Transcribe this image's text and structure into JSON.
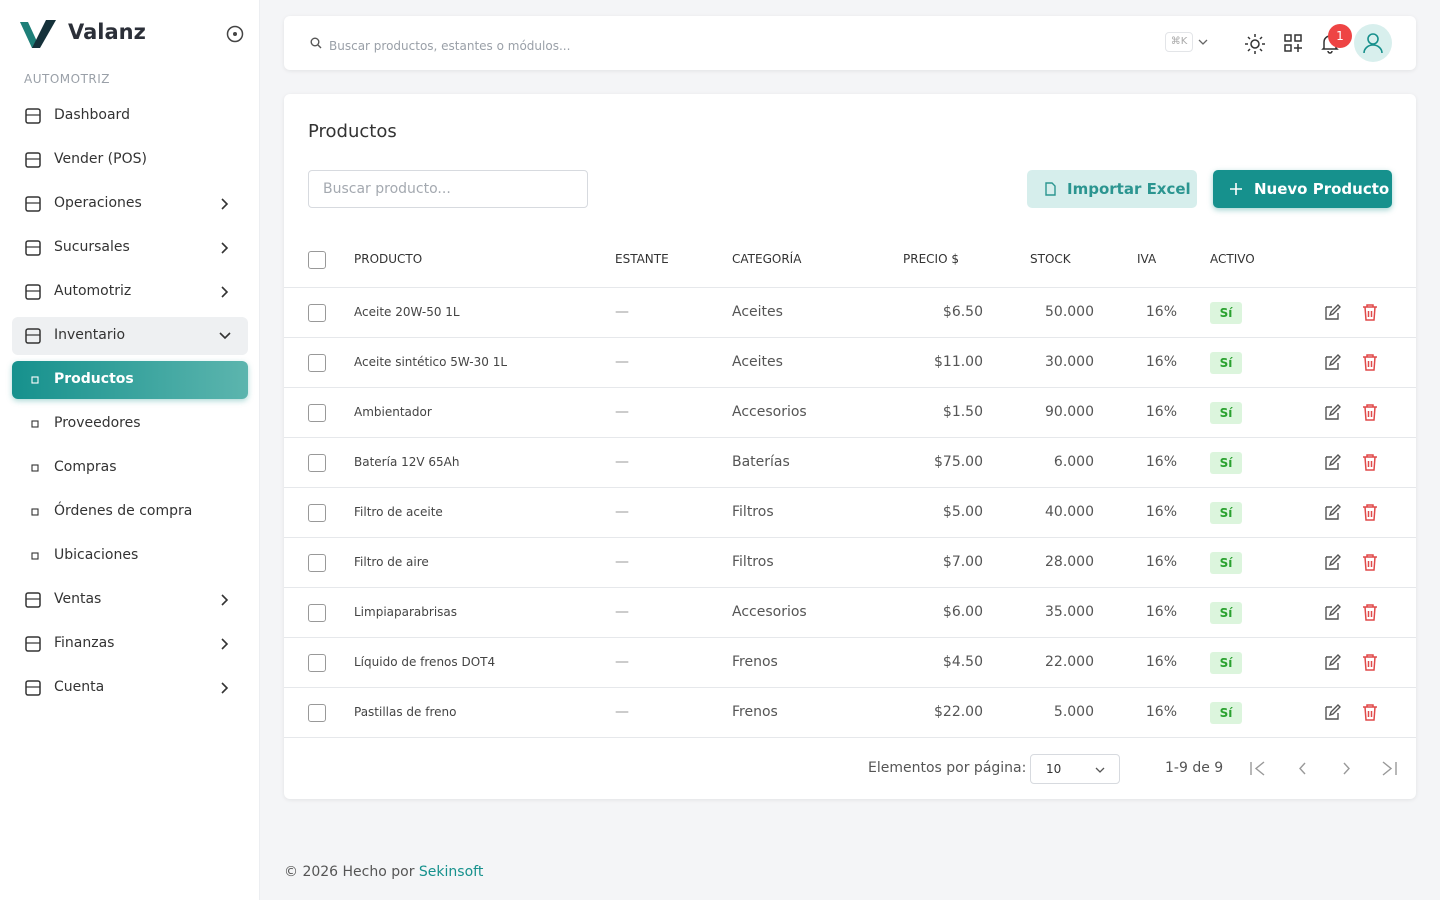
{
  "sidebar": {
    "brand": "Valanz",
    "section": "AUTOMOTRIZ",
    "items": [
      {
        "label": "Dashboard"
      },
      {
        "label": "Vender (POS)"
      },
      {
        "label": "Operaciones",
        "expandable": true
      },
      {
        "label": "Sucursales",
        "expandable": true
      },
      {
        "label": "Automotriz",
        "expandable": true
      },
      {
        "label": "Inventario",
        "expandable": true,
        "expanded": true
      },
      {
        "label": "Productos",
        "sub": true,
        "active": true
      },
      {
        "label": "Proveedores",
        "sub": true
      },
      {
        "label": "Compras",
        "sub": true
      },
      {
        "label": "Órdenes de compra",
        "sub": true
      },
      {
        "label": "Ubicaciones",
        "sub": true
      },
      {
        "label": "Ventas",
        "expandable": true
      },
      {
        "label": "Finanzas",
        "expandable": true
      },
      {
        "label": "Cuenta",
        "expandable": true
      }
    ]
  },
  "topbar": {
    "search_placeholder": "Buscar productos, estantes o módulos...",
    "shortcut": "⌘K",
    "notifications": "1"
  },
  "page": {
    "title": "Productos",
    "search_placeholder": "Buscar producto...",
    "import_button": "Importar Excel",
    "new_button": "Nuevo Producto"
  },
  "table": {
    "columns": [
      "PRODUCTO",
      "ESTANTE",
      "CATEGORÍA",
      "PRECIO $",
      "STOCK",
      "IVA",
      "ACTIVO"
    ],
    "rows": [
      [
        "Aceite 20W-50 1L",
        "—",
        "Aceites",
        "$6.50",
        "50.000",
        "16%",
        "Sí"
      ],
      [
        "Aceite sintético 5W-30 1L",
        "—",
        "Aceites",
        "$11.00",
        "30.000",
        "16%",
        "Sí"
      ],
      [
        "Ambientador",
        "—",
        "Accesorios",
        "$1.50",
        "90.000",
        "16%",
        "Sí"
      ],
      [
        "Batería 12V 65Ah",
        "—",
        "Baterías",
        "$75.00",
        "6.000",
        "16%",
        "Sí"
      ],
      [
        "Filtro de aceite",
        "—",
        "Filtros",
        "$5.00",
        "40.000",
        "16%",
        "Sí"
      ],
      [
        "Filtro de aire",
        "—",
        "Filtros",
        "$7.00",
        "28.000",
        "16%",
        "Sí"
      ],
      [
        "Limpiaparabrisas",
        "—",
        "Accesorios",
        "$6.00",
        "35.000",
        "16%",
        "Sí"
      ],
      [
        "Líquido de frenos DOT4",
        "—",
        "Frenos",
        "$4.50",
        "22.000",
        "16%",
        "Sí"
      ],
      [
        "Pastillas de freno",
        "—",
        "Frenos",
        "$22.00",
        "5.000",
        "16%",
        "Sí"
      ]
    ]
  },
  "pagination": {
    "label": "Elementos por página:",
    "page_size": "10",
    "range": "1-9 de 9"
  },
  "footer": {
    "text": "© 2026 Hecho por",
    "link": "Sekinsoft"
  }
}
